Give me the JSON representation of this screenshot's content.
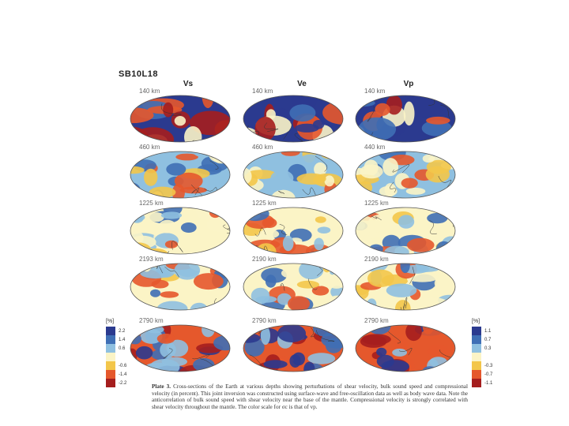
{
  "figure": {
    "title": "SB10L18"
  },
  "columns": [
    {
      "label": "Vs",
      "key": "vs"
    },
    {
      "label": "Ve",
      "key": "ve"
    },
    {
      "label": "Vp",
      "key": "vp"
    }
  ],
  "rows": [
    {
      "depths": [
        "140 km",
        "140 km",
        "140 km"
      ]
    },
    {
      "depths": [
        "460 km",
        "460 km",
        "440 km"
      ]
    },
    {
      "depths": [
        "1225 km",
        "1225 km",
        "1225 km"
      ]
    },
    {
      "depths": [
        "2193 km",
        "2190 km",
        "2190 km"
      ]
    },
    {
      "depths": [
        "2790 km",
        "2790 km",
        "2790 km"
      ]
    }
  ],
  "scale_left": {
    "unit": "[%]",
    "entries": [
      {
        "color": "#2b3a8f",
        "label": "2.2"
      },
      {
        "color": "#3f6fb5",
        "label": "1.4"
      },
      {
        "color": "#8fc0e0",
        "label": "0.6"
      },
      {
        "color": "#fbf4c6",
        "label": ""
      },
      {
        "color": "#f3c64a",
        "label": "-0.6"
      },
      {
        "color": "#e5582c",
        "label": "-1.4"
      },
      {
        "color": "#a51e1e",
        "label": "-2.2"
      }
    ]
  },
  "scale_right": {
    "unit": "[%]",
    "entries": [
      {
        "color": "#2b3a8f",
        "label": "1.1"
      },
      {
        "color": "#3f6fb5",
        "label": "0.7"
      },
      {
        "color": "#8fc0e0",
        "label": "0.3"
      },
      {
        "color": "#fbf4c6",
        "label": ""
      },
      {
        "color": "#f3c64a",
        "label": "-0.3"
      },
      {
        "color": "#e5582c",
        "label": "-0.7"
      },
      {
        "color": "#a51e1e",
        "label": "-1.1"
      }
    ]
  },
  "caption": {
    "label": "Plate 3.",
    "text": "Cross-sections of the Earth at various depths showing perturbations of shear velocity, bulk sound speed and compressional velocity (in percent). This joint inversion was constructed using surface-wave and free-oscillation data as well as body wave data. Note the anticorrelation of bulk sound speed with shear velocity near the base of the mantle. Compressional velocity is strongly correlated with shear velocity throughout the mantle. The color scale for σc is that of vp."
  },
  "palette": {
    "deep_blue": "#2b3a8f",
    "blue": "#3f6fb5",
    "light_blue": "#8fc0e0",
    "cream": "#fbf4c6",
    "yellow": "#f3c64a",
    "orange": "#e5582c",
    "dark_red": "#a51e1e"
  }
}
